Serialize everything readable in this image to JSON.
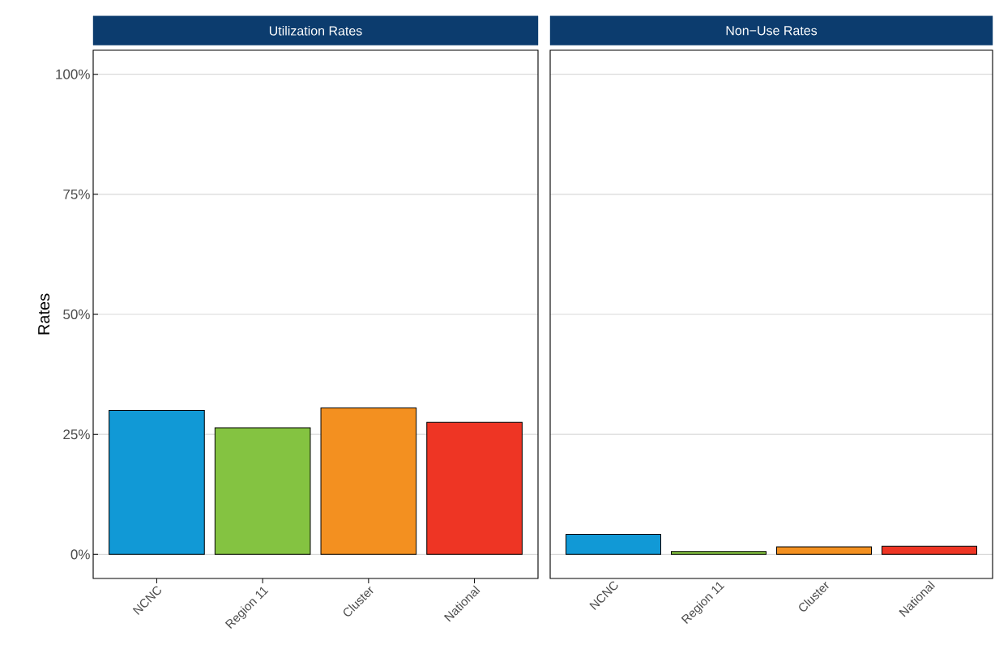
{
  "chart_data": [
    {
      "type": "bar",
      "title": "Utilization Rates",
      "ylabel": "Rates",
      "categories": [
        "NCNC",
        "Region 11",
        "Cluster",
        "National"
      ],
      "values": [
        30.0,
        26.4,
        30.5,
        27.5
      ],
      "colors": [
        "#1199d6",
        "#84c341",
        "#f39020",
        "#ee3524"
      ],
      "ylim": [
        -5,
        105
      ],
      "yticks": [
        {
          "value": 0,
          "label": "0%"
        },
        {
          "value": 25,
          "label": "25%"
        },
        {
          "value": 50,
          "label": "50%"
        },
        {
          "value": 75,
          "label": "75%"
        },
        {
          "value": 100,
          "label": "100%"
        }
      ],
      "grid": "y"
    },
    {
      "type": "bar",
      "title": "Non−Use Rates",
      "categories": [
        "NCNC",
        "Region 11",
        "Cluster",
        "National"
      ],
      "values": [
        4.2,
        0.6,
        1.6,
        1.7
      ],
      "colors": [
        "#1199d6",
        "#84c341",
        "#f39020",
        "#ee3524"
      ],
      "ylim": [
        -5,
        105
      ],
      "yticks": [
        {
          "value": 0,
          "label": null
        },
        {
          "value": 25,
          "label": null
        },
        {
          "value": 50,
          "label": null
        },
        {
          "value": 75,
          "label": null
        },
        {
          "value": 100,
          "label": null
        }
      ],
      "grid": "y",
      "tick_labels": "x"
    }
  ]
}
